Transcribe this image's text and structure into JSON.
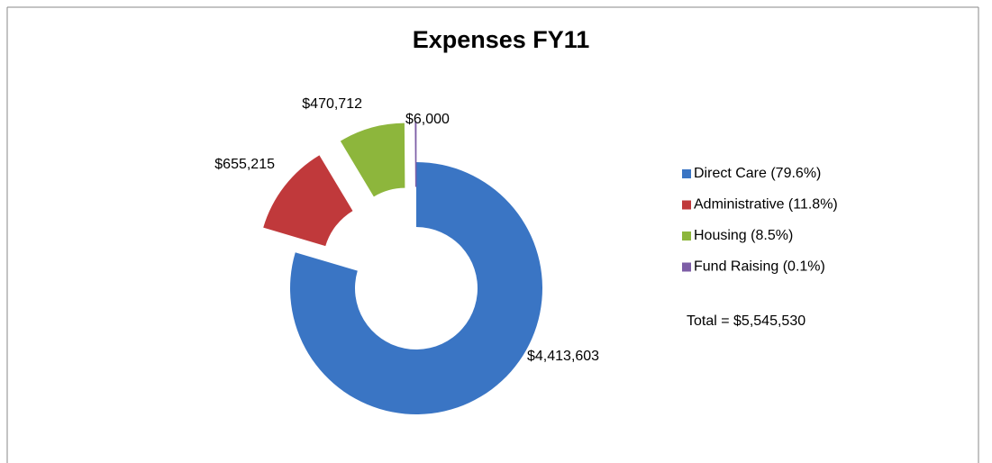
{
  "chart_data": {
    "type": "donut",
    "title": "Expenses FY11",
    "categories": [
      "Direct Care  (79.6%)",
      "Administrative  (11.8%)",
      "Housing  (8.5%)",
      "Fund Raising  (0.1%)"
    ],
    "values": [
      4413603,
      655215,
      470712,
      6000
    ],
    "value_labels": [
      "$4,413,603",
      "$655,215",
      "$470,712",
      "$6,000"
    ],
    "colors": [
      "#3a75c4",
      "#c0393b",
      "#8db63c",
      "#7d5ea6"
    ],
    "exploded": [
      false,
      true,
      true,
      true
    ],
    "annotation": "Total = $5,545,530",
    "legend": "right"
  }
}
